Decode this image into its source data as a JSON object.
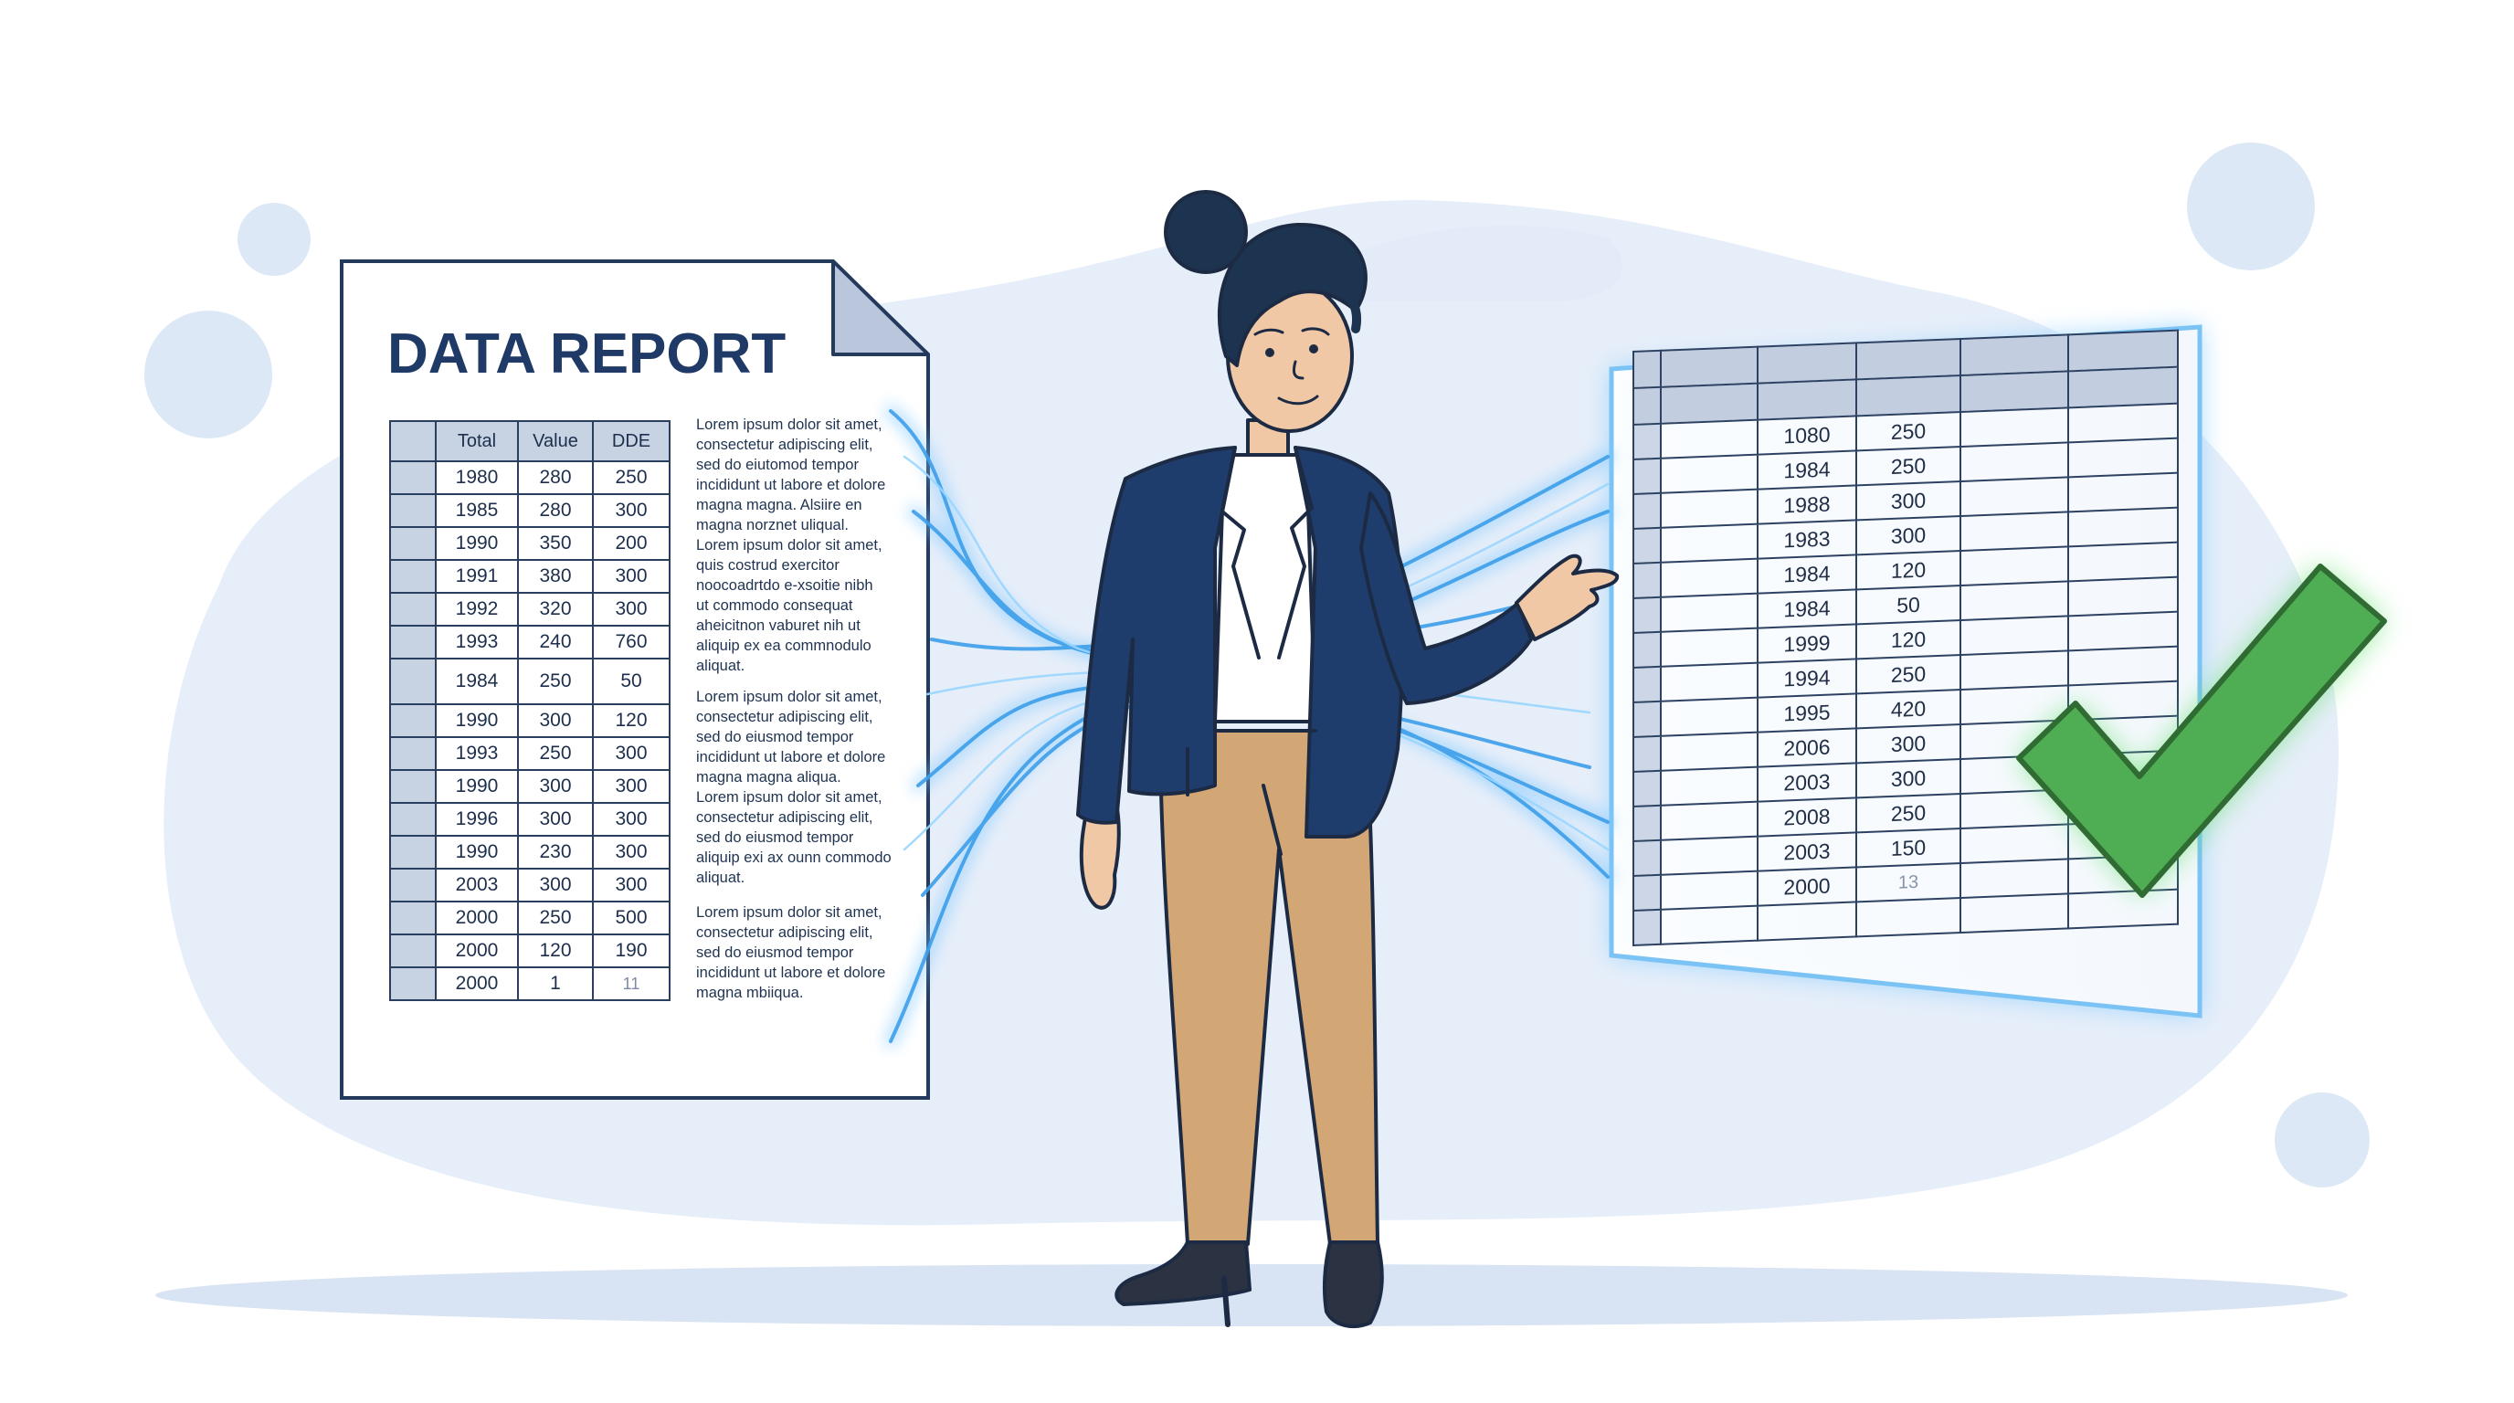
{
  "colors": {
    "navy": "#1f3a66",
    "table_header": "#c7d2e3",
    "glow_blue": "#5fb4f5",
    "check_green": "#4fae54",
    "jacket": "#1f3d6c",
    "trousers": "#d3a675"
  },
  "document": {
    "title": "DATA REPORT",
    "columns": [
      "",
      "Total",
      "Value",
      "DDE"
    ],
    "rows": [
      {
        "year": "1980",
        "value": "280",
        "dde": "250"
      },
      {
        "year": "1985",
        "value": "280",
        "dde": "300"
      },
      {
        "year": "1990",
        "value": "350",
        "dde": "200"
      },
      {
        "year": "1991",
        "value": "380",
        "dde": "300"
      },
      {
        "year": "1992",
        "value": "320",
        "dde": "300"
      },
      {
        "year": "1993",
        "value": "240",
        "dde": "760"
      },
      {
        "year": "1984",
        "value": "250",
        "dde": "50"
      },
      {
        "year": "1990",
        "value": "300",
        "dde": "120"
      },
      {
        "year": "1993",
        "value": "250",
        "dde": "300"
      },
      {
        "year": "1990",
        "value": "300",
        "dde": "300"
      },
      {
        "year": "1996",
        "value": "300",
        "dde": "300"
      },
      {
        "year": "1990",
        "value": "230",
        "dde": "300"
      },
      {
        "year": "2003",
        "value": "300",
        "dde": "300"
      },
      {
        "year": "2000",
        "value": "250",
        "dde": "500"
      },
      {
        "year": "2000",
        "value": "120",
        "dde": "190"
      },
      {
        "year": "2000",
        "value": "1",
        "dde": "11"
      }
    ],
    "paragraphs": [
      "Lorem ipsum dolor sit amet,\nconsectetur adipiscing elit,\nsed do eiutomod tempor\nincididunt ut labore et dolore\nmagna magna. Alsiire en\nmagna norznet uliqual.",
      "Lorem ipsum dolor sit amet,\nquis costrud exercitor\nnoocoadrtdo e-xsoitie nibh\nut commodo consequat\naheicitnon vaburet nih ut\naliquip ex  ea commnodulo\naliquat.",
      "Lorem ipsum dolor sit amet,\nconsectetur adipiscing elit,\nsed do eiusmod tempor\nincididunt ut labore et dolore\nmagna magna aliqua.",
      "Lorem ipsum dolor sit amet,\nconsectetur adipiscing elit,\nsed do eiusmod tempor\naliquip exi ax ounn commodo\naliquat.",
      "Lorem ipsum dolor sit amet,\nconsectetur adipiscing elit,\nsed do eiusmod tempor\nincididunt ut labore et dolore\nmagna mbiiqua."
    ]
  },
  "spreadsheet": {
    "rows": [
      {
        "year": "1080",
        "value": "250"
      },
      {
        "year": "1984",
        "value": "250"
      },
      {
        "year": "1988",
        "value": "300"
      },
      {
        "year": "1983",
        "value": "300"
      },
      {
        "year": "1984",
        "value": "120"
      },
      {
        "year": "1984",
        "value": "50"
      },
      {
        "year": "1999",
        "value": "120"
      },
      {
        "year": "1994",
        "value": "250"
      },
      {
        "year": "1995",
        "value": "420"
      },
      {
        "year": "2006",
        "value": "300"
      },
      {
        "year": "2003",
        "value": "300"
      },
      {
        "year": "2008",
        "value": "250"
      },
      {
        "year": "2003",
        "value": "150"
      },
      {
        "year": "2000",
        "value": "13"
      }
    ]
  },
  "icons": {
    "check": "checkmark-icon",
    "data_flow": "data-stream-lines"
  }
}
